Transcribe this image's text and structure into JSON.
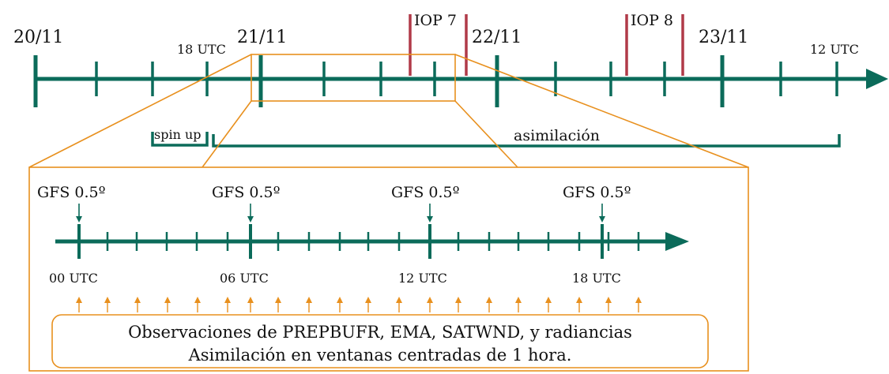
{
  "colors": {
    "timeline": "#0b6b5a",
    "orange": "#e8901e",
    "iop": "#b03a48",
    "text": "#111111"
  },
  "top_timeline": {
    "dates": [
      "20/11",
      "21/11",
      "22/11",
      "23/11"
    ],
    "utc_labels": [
      "18 UTC",
      "12 UTC"
    ],
    "iops": [
      "IOP 7",
      "IOP 8"
    ],
    "spin_up_label": "spin up",
    "assimilation_label": "asimilación"
  },
  "detail": {
    "gfs_labels": [
      "GFS 0.5º",
      "GFS 0.5º",
      "GFS 0.5º",
      "GFS 0.5º"
    ],
    "utc_labels": [
      "00 UTC",
      "06 UTC",
      "12 UTC",
      "18 UTC"
    ],
    "observations_line1": "Observaciones de PREPBUFR, EMA, SATWND, y radiancias",
    "observations_line2": "Asimilación en ventanas centradas de 1 hora."
  }
}
